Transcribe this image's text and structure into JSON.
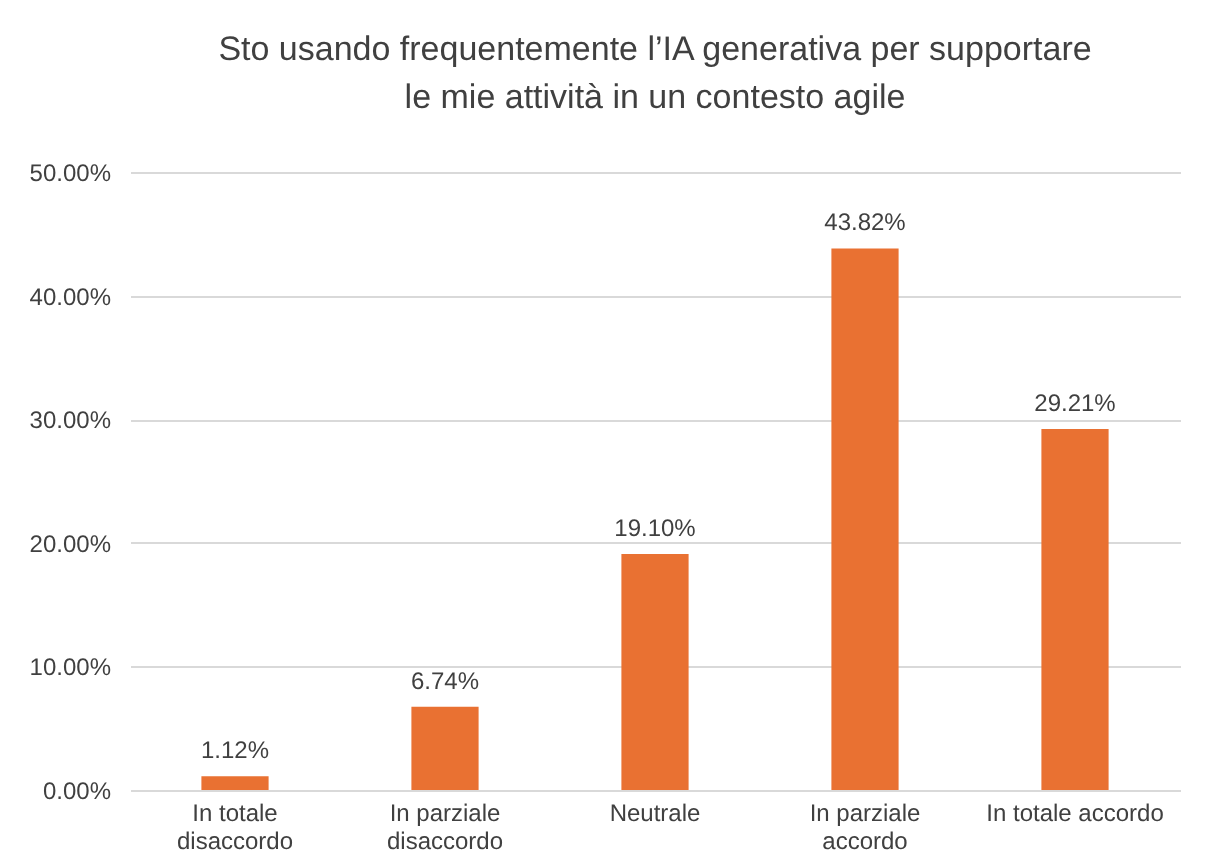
{
  "chart_data": {
    "type": "bar",
    "title": "Sto usando frequentemente l’IA generativa per supportare le mie attività in un contesto agile",
    "categories": [
      "In totale disaccordo",
      "In parziale disaccordo",
      "Neutrale",
      "In parziale accordo",
      "In totale accordo"
    ],
    "values": [
      1.12,
      6.74,
      19.1,
      43.82,
      29.21
    ],
    "value_labels": [
      "1.12%",
      "6.74%",
      "19.10%",
      "43.82%",
      "29.21%"
    ],
    "color": "#e97132",
    "ylim": [
      0,
      50
    ],
    "yticks": [
      {
        "value": 0,
        "label": "0.00%"
      },
      {
        "value": 10,
        "label": "10.00%"
      },
      {
        "value": 20,
        "label": "20.00%"
      },
      {
        "value": 30,
        "label": "30.00%"
      },
      {
        "value": 40,
        "label": "40.00%"
      },
      {
        "value": 50,
        "label": "50.00%"
      }
    ],
    "grid": "y"
  }
}
